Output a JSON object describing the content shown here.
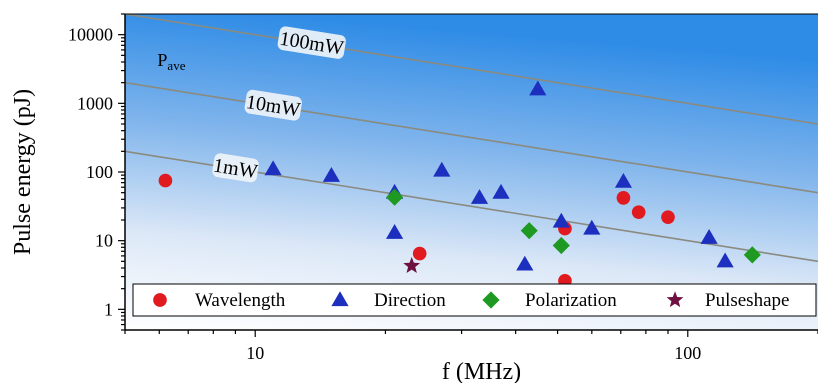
{
  "chart_data": {
    "type": "scatter",
    "xlabel": "f (MHz)",
    "ylabel": "Pulse energy (pJ)",
    "x_scale": "log",
    "y_scale": "log",
    "xlim": [
      5,
      200
    ],
    "ylim": [
      0.5,
      20000
    ],
    "x_ticks": [
      {
        "value": 10,
        "label": "10"
      },
      {
        "value": 100,
        "label": "100"
      }
    ],
    "y_ticks": [
      {
        "value": 1,
        "label": "1"
      },
      {
        "value": 10,
        "label": "10"
      },
      {
        "value": 100,
        "label": "100"
      },
      {
        "value": 1000,
        "label": "1000"
      },
      {
        "value": 10000,
        "label": "10000"
      }
    ],
    "power_annotation": {
      "label": "P",
      "subscript": "ave"
    },
    "power_lines": [
      {
        "label": "1mW",
        "power_mW": 1,
        "label_x": 9.0
      },
      {
        "label": "10mW",
        "power_mW": 10,
        "label_x": 11.0
      },
      {
        "label": "100mW",
        "power_mW": 100,
        "label_x": 13.5
      }
    ],
    "legend_position": "bottom",
    "series": [
      {
        "name": "Wavelength",
        "marker": "circle",
        "color": "#e01a1f",
        "points": [
          {
            "x": 6.2,
            "y": 75
          },
          {
            "x": 24,
            "y": 6.5
          },
          {
            "x": 52,
            "y": 15
          },
          {
            "x": 52,
            "y": 2.6
          },
          {
            "x": 71,
            "y": 42
          },
          {
            "x": 77,
            "y": 26
          },
          {
            "x": 90,
            "y": 22
          }
        ]
      },
      {
        "name": "Direction",
        "marker": "triangle",
        "color": "#1c2fbf",
        "points": [
          {
            "x": 11,
            "y": 110
          },
          {
            "x": 15,
            "y": 88
          },
          {
            "x": 21,
            "y": 50
          },
          {
            "x": 21,
            "y": 13
          },
          {
            "x": 27,
            "y": 105
          },
          {
            "x": 33,
            "y": 42
          },
          {
            "x": 37,
            "y": 50
          },
          {
            "x": 42,
            "y": 4.5
          },
          {
            "x": 45,
            "y": 1600
          },
          {
            "x": 51,
            "y": 19
          },
          {
            "x": 60,
            "y": 15
          },
          {
            "x": 71,
            "y": 72
          },
          {
            "x": 112,
            "y": 11
          },
          {
            "x": 122,
            "y": 5
          }
        ]
      },
      {
        "name": "Polarization",
        "marker": "diamond",
        "color": "#1e9a22",
        "points": [
          {
            "x": 21,
            "y": 43
          },
          {
            "x": 43,
            "y": 14
          },
          {
            "x": 51,
            "y": 8.5
          },
          {
            "x": 141,
            "y": 6.2
          }
        ]
      },
      {
        "name": "Pulseshape",
        "marker": "star",
        "color": "#6e1040",
        "points": [
          {
            "x": 23,
            "y": 4.3
          }
        ]
      }
    ]
  }
}
